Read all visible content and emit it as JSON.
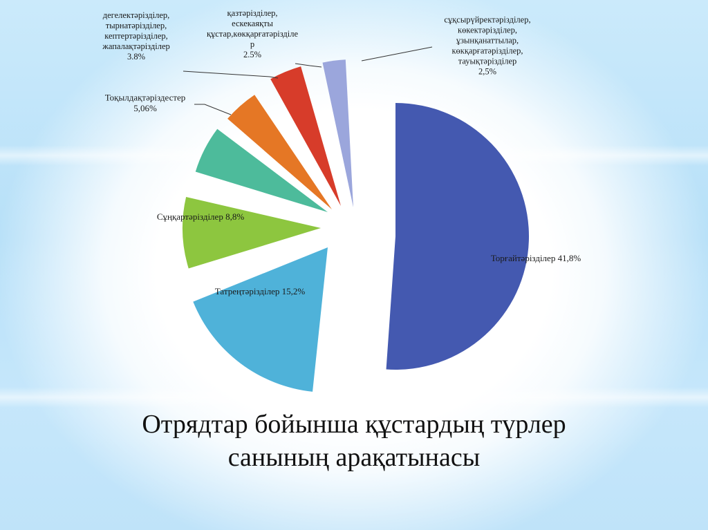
{
  "chart_data": {
    "type": "pie",
    "title_lines": [
      "Отрядтар бойынша құстардың түрлер",
      "санының арақатынасы"
    ],
    "slices": [
      {
        "label_lines": [
          "Торғайтәрізділер 41,8%"
        ],
        "value": 41.8,
        "color": "#4459b0"
      },
      {
        "label_lines": [
          "Татреңтәрізділер 15,2%"
        ],
        "value": 15.2,
        "color": "#4fb2d9"
      },
      {
        "label_lines": [
          "Сұңқартәрізділер 8,8%"
        ],
        "value": 8.8,
        "color": "#8dc63f"
      },
      {
        "label_lines": [
          "Тоқылдақтәріздестер",
          "5,06%"
        ],
        "value": 5.06,
        "color": "#4dbb9b"
      },
      {
        "label_lines": [
          "дегелектәрізділер,",
          "тырнатәрізділер,",
          "кептертәрізділер,",
          "жапалақтәрізділер",
          "3.8%"
        ],
        "value": 3.8,
        "color": "#e57725"
      },
      {
        "label_lines": [
          "қазтәрізділер,",
          "ескекаяқты",
          "құстар,көкқарғатәрізділе",
          "р",
          "2.5%"
        ],
        "value": 2.5,
        "color": "#d73c2a"
      },
      {
        "label_lines": [
          "сұқсырүйректәрізділер,",
          "көкектәрізділер,",
          "ұзынқанаттылар,",
          "көкқарғатәрізділер,",
          "тауықтәрізділер",
          "2,5%"
        ],
        "value": 2.5,
        "color": "#9ba6dc"
      }
    ],
    "legend": "none"
  }
}
